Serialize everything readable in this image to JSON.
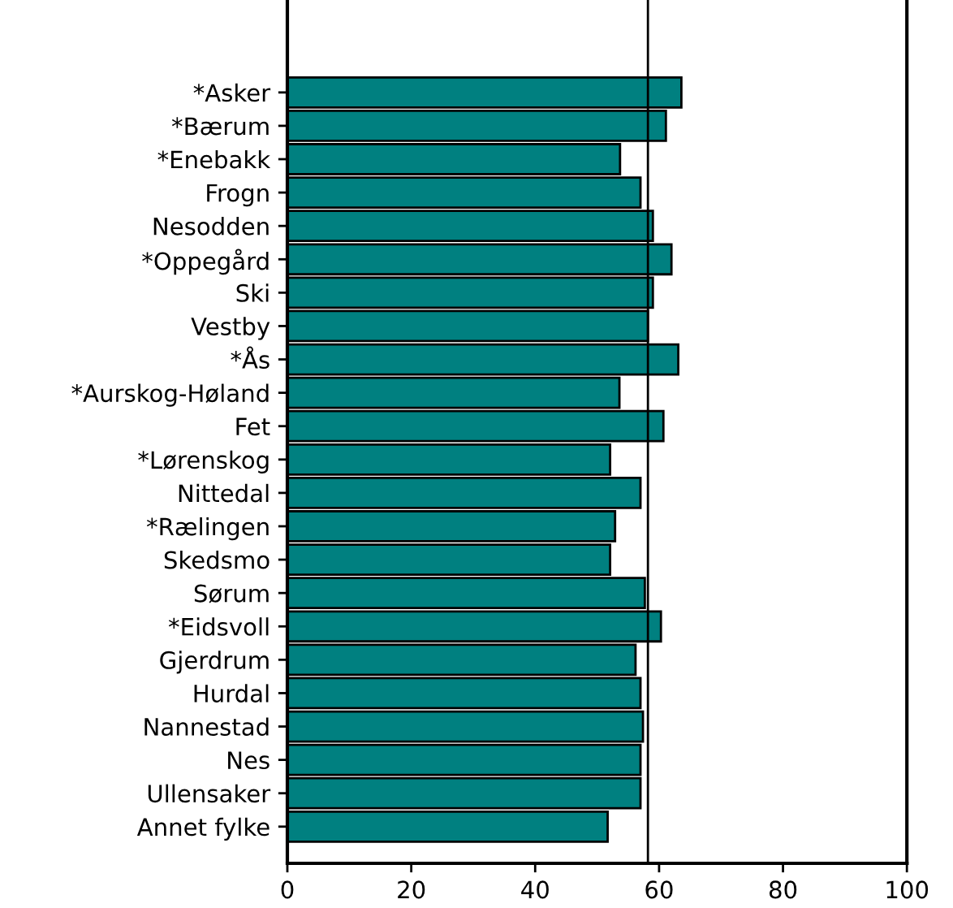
{
  "chart_data": {
    "type": "bar",
    "orientation": "horizontal",
    "categories": [
      "*Asker",
      "*Bærum",
      "*Enebakk",
      "Frogn",
      "Nesodden",
      "*Oppegård",
      "Ski",
      "Vestby",
      "*Ås",
      "*Aurskog-Høland",
      "Fet",
      "*Lørenskog",
      "Nittedal",
      "*Rælingen",
      "Skedsmo",
      "Sørum",
      "*Eidsvoll",
      "Gjerdrum",
      "Hurdal",
      "Nannestad",
      "Nes",
      "Ullensaker",
      "Annet fylke"
    ],
    "values": [
      63.6,
      61.1,
      53.7,
      57.0,
      59.0,
      62.0,
      59.0,
      58.2,
      63.1,
      53.6,
      60.7,
      52.1,
      57.0,
      52.9,
      52.1,
      57.7,
      60.3,
      56.2,
      57.0,
      57.4,
      57.0,
      57.0,
      51.7
    ],
    "color": "#008080",
    "xlim": [
      0,
      100
    ],
    "xticks": [
      0,
      20,
      40,
      60,
      80,
      100
    ],
    "ref_lines": [
      {
        "axis": "x",
        "value": 58.2,
        "color": "#000000"
      }
    ],
    "grid": false
  }
}
